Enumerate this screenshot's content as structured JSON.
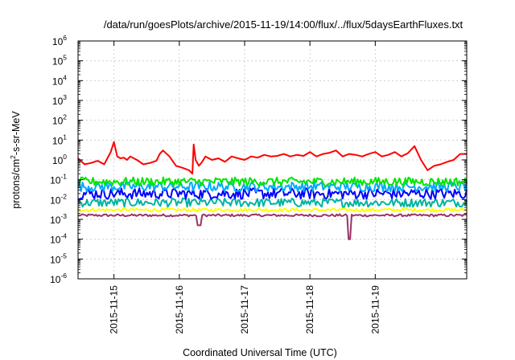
{
  "chart_data": {
    "type": "line",
    "title": "/data/run/goesPlots/archive/2015-11-19/14:00/flux/../flux/5daysEarthFluxes.txt",
    "xlabel": "Coordinated Universal Time (UTC)",
    "ylabel": {
      "prefix": "protons/cm",
      "sup": "2",
      "suffix": "-s-sr-MeV"
    },
    "y_scale": "log",
    "ylim": [
      1e-06,
      1000000.0
    ],
    "y_ticks": [
      {
        "base": "10",
        "exp": "-6",
        "value": -6
      },
      {
        "base": "10",
        "exp": "-5",
        "value": -5
      },
      {
        "base": "10",
        "exp": "-4",
        "value": -4
      },
      {
        "base": "10",
        "exp": "-3",
        "value": -3
      },
      {
        "base": "10",
        "exp": "-2",
        "value": -2
      },
      {
        "base": "10",
        "exp": "-1",
        "value": -1
      },
      {
        "base": "10",
        "exp": "0",
        "value": 0
      },
      {
        "base": "10",
        "exp": "1",
        "value": 1
      },
      {
        "base": "10",
        "exp": "2",
        "value": 2
      },
      {
        "base": "10",
        "exp": "3",
        "value": 3
      },
      {
        "base": "10",
        "exp": "4",
        "value": 4
      },
      {
        "base": "10",
        "exp": "5",
        "value": 5
      },
      {
        "base": "10",
        "exp": "6",
        "value": 6
      }
    ],
    "xlim_days": [
      -0.55,
      5.4
    ],
    "x_ticks": [
      {
        "label": "2015-11-15",
        "day": 0
      },
      {
        "label": "2015-11-16",
        "day": 1
      },
      {
        "label": "2015-11-17",
        "day": 2
      },
      {
        "label": "2015-11-18",
        "day": 3
      },
      {
        "label": "2015-11-19",
        "day": 4
      }
    ],
    "grid": true,
    "legend": "none",
    "series": [
      {
        "color": "#ff0000",
        "x": [
          -0.55,
          -0.45,
          -0.35,
          -0.25,
          -0.15,
          -0.05,
          0.0,
          0.05,
          0.1,
          0.15,
          0.2,
          0.25,
          0.35,
          0.45,
          0.55,
          0.65,
          0.7,
          0.75,
          0.85,
          0.95,
          1.05,
          1.15,
          1.2,
          1.22,
          1.25,
          1.3,
          1.35,
          1.4,
          1.5,
          1.6,
          1.7,
          1.8,
          1.9,
          2.0,
          2.1,
          2.2,
          2.3,
          2.4,
          2.5,
          2.6,
          2.7,
          2.8,
          2.9,
          3.0,
          3.1,
          3.2,
          3.3,
          3.4,
          3.5,
          3.6,
          3.7,
          3.8,
          3.9,
          4.0,
          4.1,
          4.2,
          4.3,
          4.4,
          4.5,
          4.6,
          4.7,
          4.8,
          4.9,
          5.0,
          5.1,
          5.2,
          5.3,
          5.4
        ],
        "y": [
          1.2,
          0.6,
          0.7,
          0.9,
          0.6,
          2.5,
          8.0,
          1.5,
          1.2,
          1.3,
          1.0,
          1.5,
          1.0,
          0.6,
          0.7,
          0.9,
          2.0,
          3.0,
          1.5,
          0.5,
          0.4,
          0.3,
          0.2,
          6.0,
          1.0,
          0.5,
          0.8,
          1.5,
          1.0,
          1.2,
          0.8,
          1.5,
          1.2,
          1.0,
          1.5,
          1.3,
          1.8,
          1.5,
          1.6,
          2.0,
          1.5,
          1.8,
          1.6,
          2.5,
          1.5,
          2.0,
          2.3,
          3.0,
          1.5,
          2.0,
          1.8,
          1.5,
          2.0,
          2.5,
          1.5,
          1.8,
          2.5,
          1.5,
          2.2,
          5.0,
          1.0,
          0.3,
          0.5,
          0.6,
          0.8,
          1.0,
          2.0,
          2.0
        ]
      },
      {
        "color": "#00e600",
        "center": 0.08,
        "amp": 0.22,
        "x_range": [
          -0.55,
          5.4
        ]
      },
      {
        "color": "#00aaff",
        "center": 0.045,
        "amp": 0.25,
        "x_range": [
          -0.55,
          5.4
        ]
      },
      {
        "color": "#0000ff",
        "center": 0.02,
        "amp": 0.28,
        "x_range": [
          -0.55,
          5.4
        ]
      },
      {
        "color": "#00b3a0",
        "center": 0.007,
        "amp": 0.22,
        "x_range": [
          -0.55,
          5.4
        ]
      },
      {
        "color": "#ffff00",
        "center": 0.003,
        "amp": 0.08,
        "x_range": [
          -0.55,
          5.4
        ]
      },
      {
        "color": "#993366",
        "center": 0.0016,
        "amp": 0.06,
        "x_range": [
          -0.55,
          5.4
        ],
        "dips": [
          {
            "day": 1.3,
            "y": 0.0005
          },
          {
            "day": 3.6,
            "y": 0.0001
          }
        ]
      }
    ]
  }
}
